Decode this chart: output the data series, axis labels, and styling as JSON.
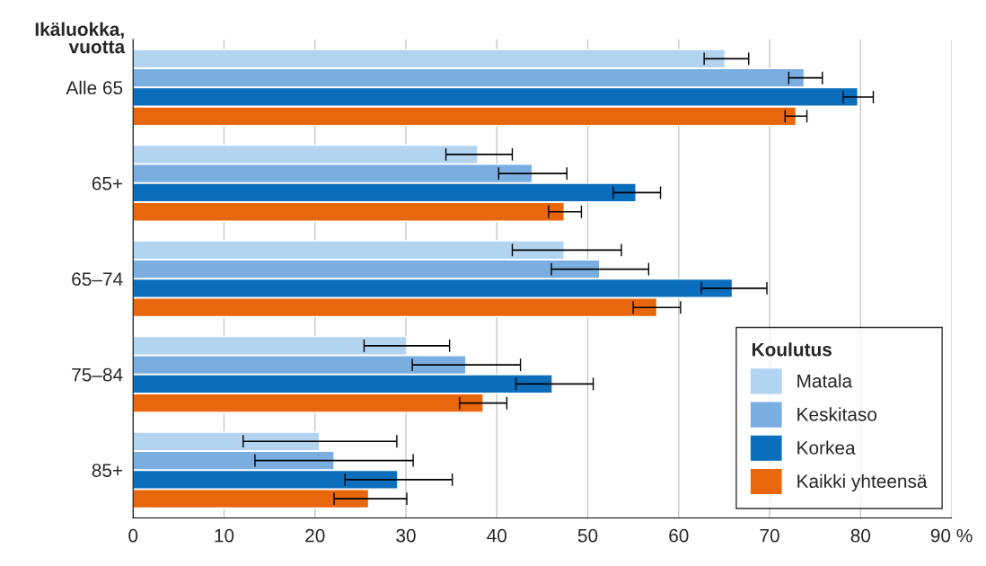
{
  "chart_data": {
    "type": "bar",
    "orientation": "horizontal",
    "ylabel": "Ikäluokka,\nvuotta",
    "legend_title": "Koulutus",
    "legend": "bottom right",
    "grid": "x",
    "categories": [
      "Alle 65",
      "65+",
      "65–74",
      "75–84",
      "85+"
    ],
    "xlim": [
      0,
      90
    ],
    "xticks": [
      0,
      10,
      20,
      30,
      40,
      50,
      60,
      70,
      80,
      {
        "value": 90,
        "label": "90 %"
      }
    ],
    "series": [
      {
        "name": "Matala",
        "color": "#b3d4f0",
        "values": [
          65.1,
          37.9,
          47.4,
          30.1,
          20.5
        ],
        "errors": [
          [
            62.8,
            67.7
          ],
          [
            34.4,
            41.7
          ],
          [
            41.7,
            53.7
          ],
          [
            25.4,
            34.8
          ],
          [
            12.1,
            29.0
          ]
        ]
      },
      {
        "name": "Keskitaso",
        "color": "#7aaee0",
        "values": [
          73.8,
          43.9,
          51.3,
          36.6,
          22.1
        ],
        "errors": [
          [
            72.1,
            75.8
          ],
          [
            40.2,
            47.7
          ],
          [
            46.0,
            56.7
          ],
          [
            30.7,
            42.6
          ],
          [
            13.4,
            30.8
          ]
        ]
      },
      {
        "name": "Korkea",
        "color": "#0a6ebd",
        "values": [
          79.7,
          55.3,
          65.9,
          46.1,
          29.1
        ],
        "errors": [
          [
            78.1,
            81.4
          ],
          [
            52.8,
            58.0
          ],
          [
            62.5,
            69.7
          ],
          [
            42.1,
            50.6
          ],
          [
            23.3,
            35.1
          ]
        ]
      },
      {
        "name": "Kaikki yhteensä",
        "color": "#e8660c",
        "values": [
          72.9,
          47.4,
          57.6,
          38.5,
          25.9
        ],
        "errors": [
          [
            71.7,
            74.1
          ],
          [
            45.7,
            49.3
          ],
          [
            55.0,
            60.2
          ],
          [
            35.9,
            41.1
          ],
          [
            22.1,
            30.1
          ]
        ]
      }
    ]
  }
}
